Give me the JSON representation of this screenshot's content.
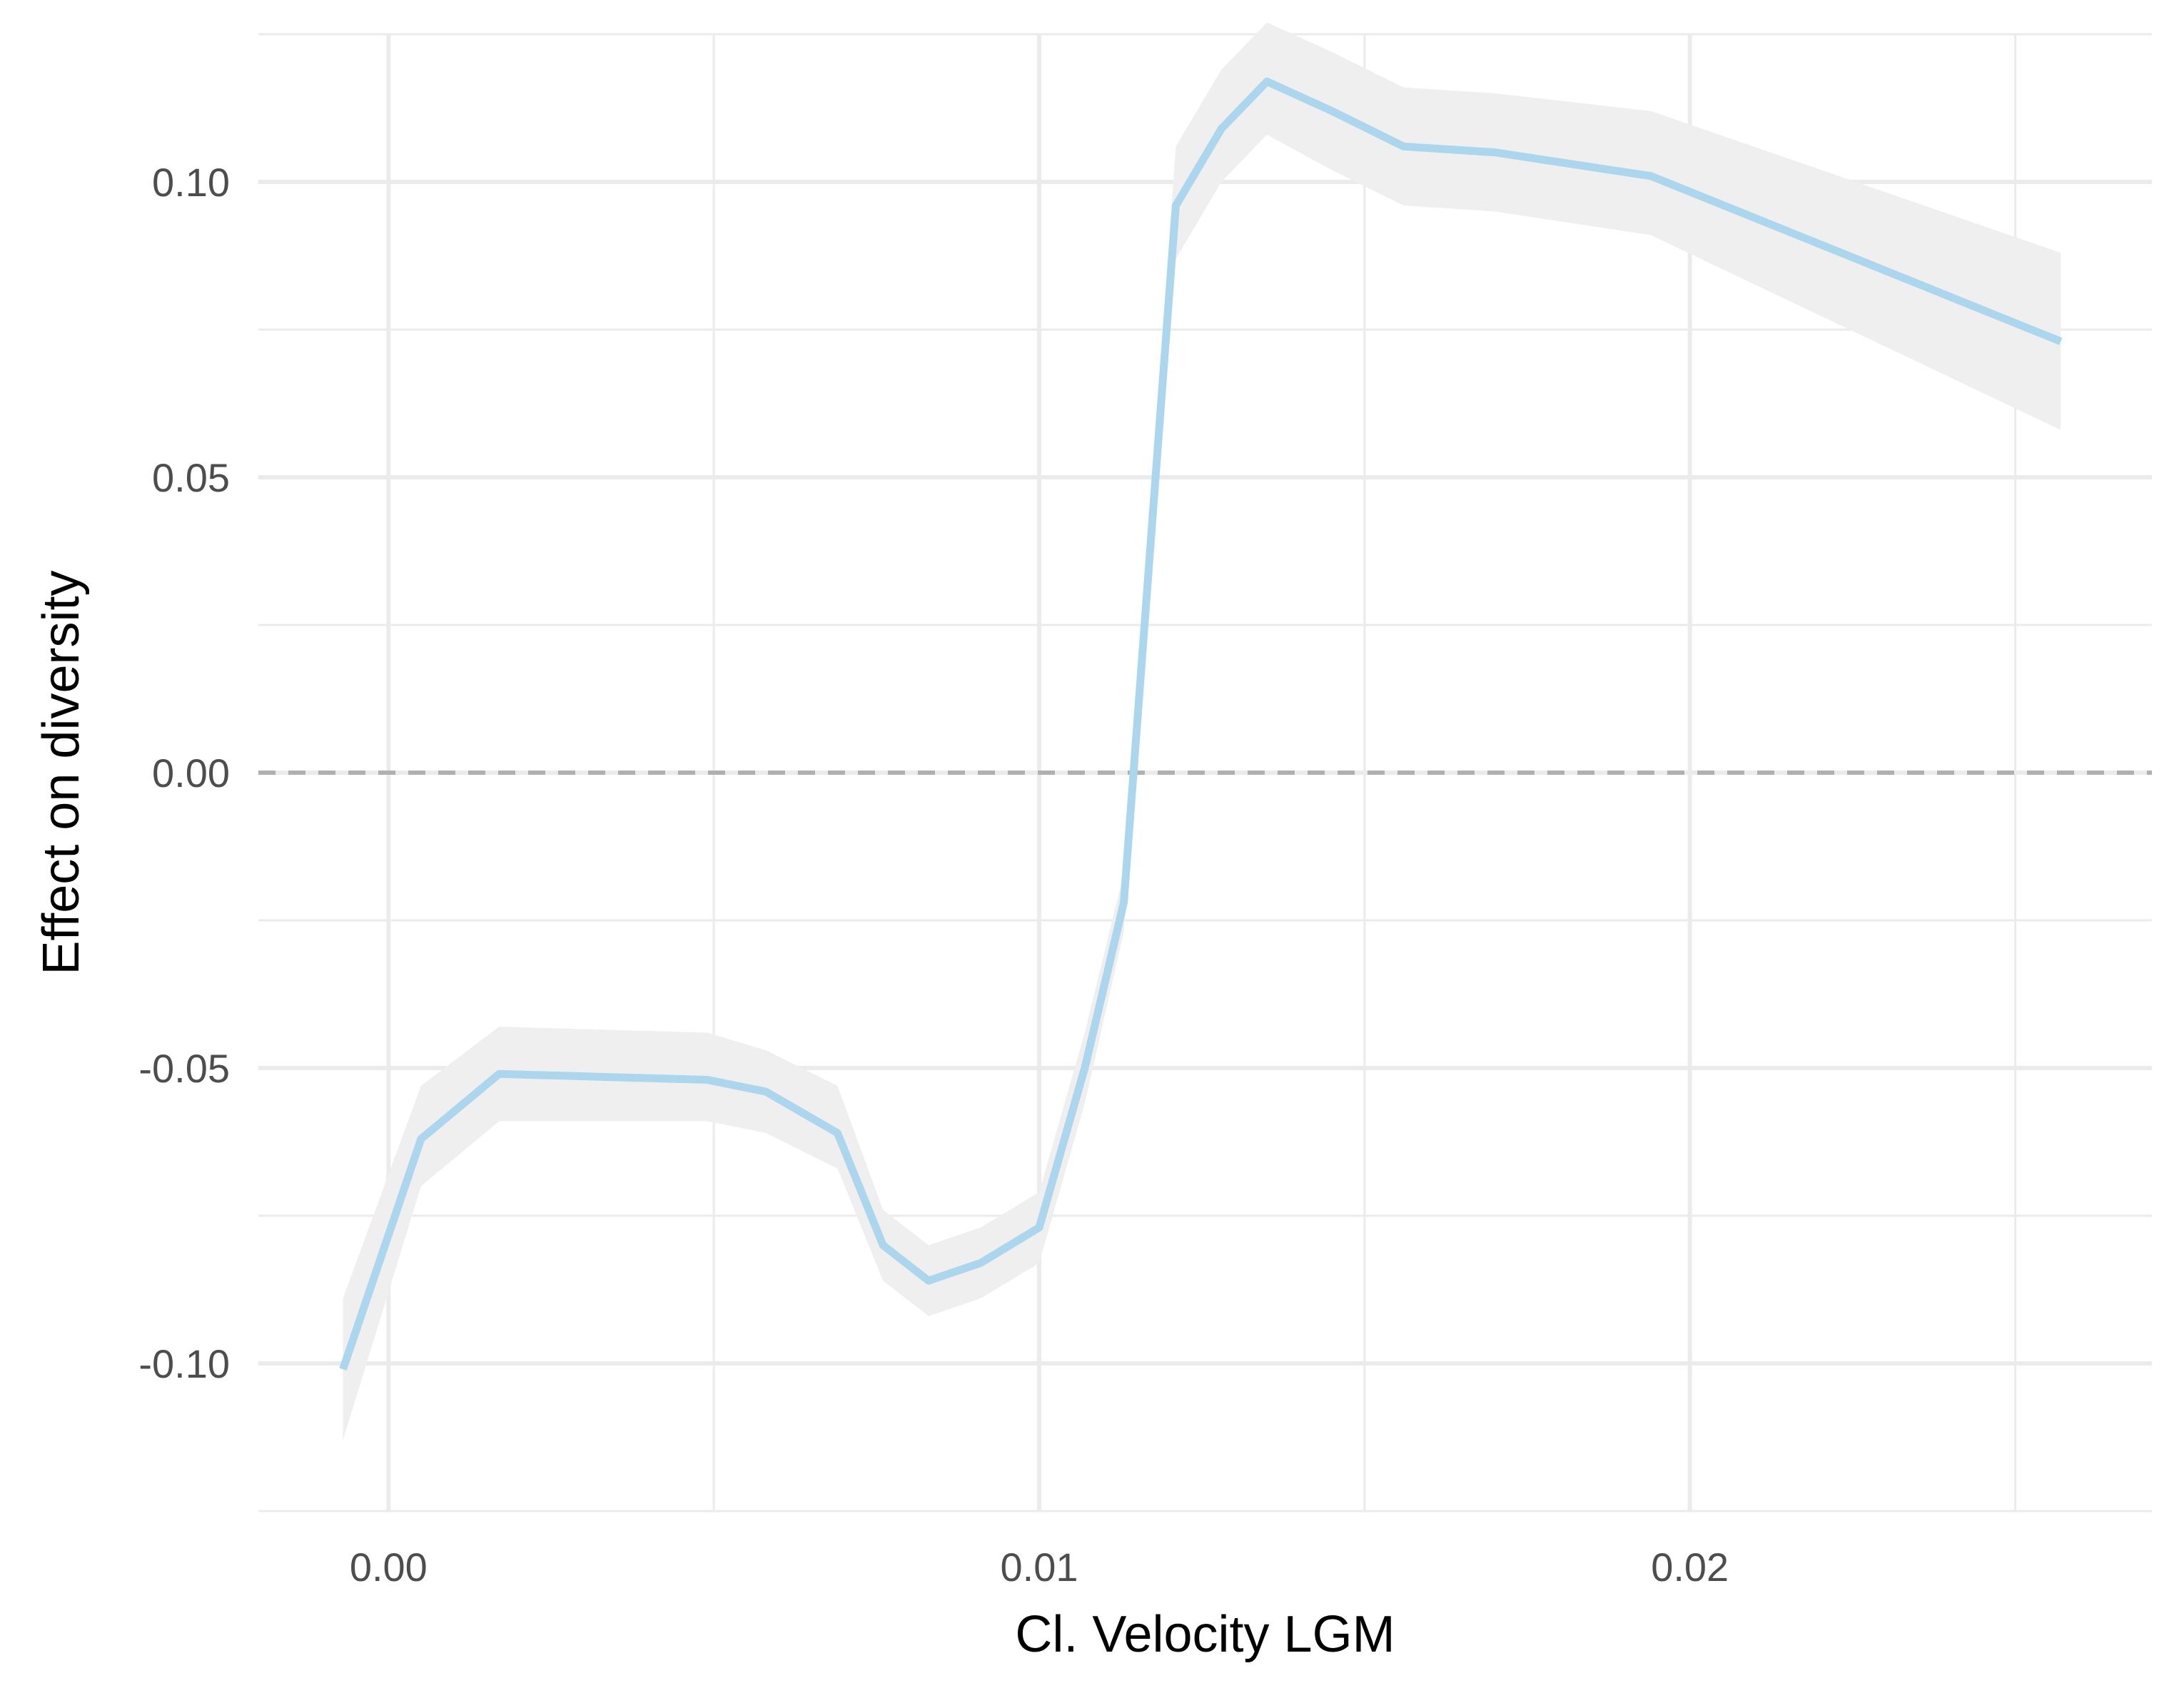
{
  "chart_data": {
    "type": "line",
    "title": "",
    "xlabel": "Cl. Velocity LGM",
    "ylabel": "Effect on diversity",
    "xlim": [
      -0.002,
      0.0271
    ],
    "ylim": [
      -0.125,
      0.125
    ],
    "x_ticks": [
      0.0,
      0.01,
      0.02
    ],
    "x_tick_labels": [
      "0.00",
      "0.01",
      "0.02"
    ],
    "y_ticks": [
      -0.1,
      -0.05,
      0.0,
      0.05,
      0.1
    ],
    "y_tick_labels": [
      "-0.10",
      "-0.05",
      "0.00",
      "0.05",
      "0.10"
    ],
    "grid": true,
    "reference_line": {
      "y": 0.0,
      "style": "dashed",
      "color": "#b0b0b0"
    },
    "series": [
      {
        "color": "#abd6ee",
        "band_color": "#efefef",
        "x": [
          -0.0007,
          0.0005,
          0.0017,
          0.0049,
          0.0058,
          0.0069,
          0.0076,
          0.0083,
          0.0091,
          0.01,
          0.0107,
          0.0113,
          0.0121,
          0.0128,
          0.0135,
          0.0145,
          0.0156,
          0.017,
          0.0194,
          0.0257
        ],
        "y": [
          -0.101,
          -0.062,
          -0.051,
          -0.052,
          -0.054,
          -0.061,
          -0.08,
          -0.086,
          -0.083,
          -0.077,
          -0.05,
          -0.022,
          0.096,
          0.109,
          0.117,
          0.112,
          0.106,
          0.105,
          0.101,
          0.073
        ],
        "lower": [
          -0.113,
          -0.07,
          -0.059,
          -0.059,
          -0.061,
          -0.067,
          -0.086,
          -0.092,
          -0.089,
          -0.083,
          -0.056,
          -0.027,
          0.087,
          0.1,
          0.108,
          0.102,
          0.096,
          0.095,
          0.091,
          0.058
        ],
        "upper": [
          -0.089,
          -0.053,
          -0.043,
          -0.044,
          -0.047,
          -0.053,
          -0.074,
          -0.08,
          -0.077,
          -0.071,
          -0.044,
          -0.017,
          0.106,
          0.119,
          0.127,
          0.122,
          0.116,
          0.115,
          0.112,
          0.088
        ]
      }
    ]
  }
}
